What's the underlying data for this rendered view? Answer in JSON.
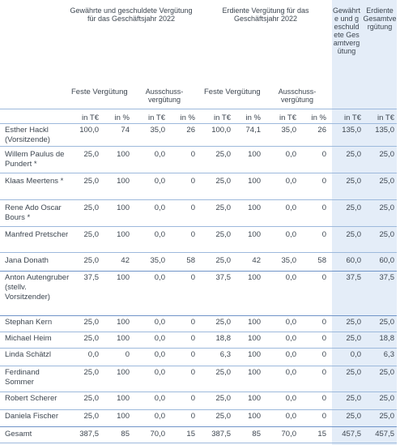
{
  "headers": {
    "group_granted": "Gewährte und geschuldete Vergütung für das Geschäftsjahr 2022",
    "group_earned": "Erdiente Vergütung für das Geschäftsjahr 2022",
    "total_granted": "Gewährte und geschuldete Gesamtvergütung",
    "total_earned": "Erdiente Gesamtvergütung",
    "fixed": "Feste Vergütung",
    "committee": "Ausschuss-vergütung",
    "unit_teur": "in T€",
    "unit_pct": "in %"
  },
  "rows": [
    {
      "name": "Esther Hackl (Vorsitzende)",
      "g_fix": "100,0",
      "g_fix_pct": "74",
      "g_com": "35,0",
      "g_com_pct": "26",
      "e_fix": "100,0",
      "e_fix_pct": "74,1",
      "e_com": "35,0",
      "e_com_pct": "26",
      "tot_g": "135,0",
      "tot_e": "135,0"
    },
    {
      "name": "Willem Paulus de Pundert *",
      "g_fix": "25,0",
      "g_fix_pct": "100",
      "g_com": "0,0",
      "g_com_pct": "0",
      "e_fix": "25,0",
      "e_fix_pct": "100",
      "e_com": "0,0",
      "e_com_pct": "0",
      "tot_g": "25,0",
      "tot_e": "25,0"
    },
    {
      "name": "Klaas Meertens *",
      "g_fix": "25,0",
      "g_fix_pct": "100",
      "g_com": "0,0",
      "g_com_pct": "0",
      "e_fix": "25,0",
      "e_fix_pct": "100",
      "e_com": "0,0",
      "e_com_pct": "0",
      "tot_g": "25,0",
      "tot_e": "25,0"
    },
    {
      "name": "Rene Ado Oscar Bours *",
      "g_fix": "25,0",
      "g_fix_pct": "100",
      "g_com": "0,0",
      "g_com_pct": "0",
      "e_fix": "25,0",
      "e_fix_pct": "100",
      "e_com": "0,0",
      "e_com_pct": "0",
      "tot_g": "25,0",
      "tot_e": "25,0"
    },
    {
      "name": "Manfred Pretscher",
      "g_fix": "25,0",
      "g_fix_pct": "100",
      "g_com": "0,0",
      "g_com_pct": "0",
      "e_fix": "25,0",
      "e_fix_pct": "100",
      "e_com": "0,0",
      "e_com_pct": "0",
      "tot_g": "25,0",
      "tot_e": "25,0"
    },
    {
      "name": "Jana Donath",
      "g_fix": "25,0",
      "g_fix_pct": "42",
      "g_com": "35,0",
      "g_com_pct": "58",
      "e_fix": "25,0",
      "e_fix_pct": "42",
      "e_com": "35,0",
      "e_com_pct": "58",
      "tot_g": "60,0",
      "tot_e": "60,0"
    },
    {
      "name": "Anton Autengruber (stellv. Vorsitzender)",
      "g_fix": "37,5",
      "g_fix_pct": "100",
      "g_com": "0,0",
      "g_com_pct": "0",
      "e_fix": "37,5",
      "e_fix_pct": "100",
      "e_com": "0,0",
      "e_com_pct": "0",
      "tot_g": "37,5",
      "tot_e": "37,5"
    },
    {
      "name": "Stephan Kern",
      "g_fix": "25,0",
      "g_fix_pct": "100",
      "g_com": "0,0",
      "g_com_pct": "0",
      "e_fix": "25,0",
      "e_fix_pct": "100",
      "e_com": "0,0",
      "e_com_pct": "0",
      "tot_g": "25,0",
      "tot_e": "25,0"
    },
    {
      "name": "Michael Heim",
      "g_fix": "25,0",
      "g_fix_pct": "100",
      "g_com": "0,0",
      "g_com_pct": "0",
      "e_fix": "18,8",
      "e_fix_pct": "100",
      "e_com": "0,0",
      "e_com_pct": "0",
      "tot_g": "25,0",
      "tot_e": "18,8"
    },
    {
      "name": "Linda Schätzl",
      "g_fix": "0,0",
      "g_fix_pct": "0",
      "g_com": "0,0",
      "g_com_pct": "0",
      "e_fix": "6,3",
      "e_fix_pct": "100",
      "e_com": "0,0",
      "e_com_pct": "0",
      "tot_g": "0,0",
      "tot_e": "6,3"
    },
    {
      "name": "Ferdinand Sommer",
      "g_fix": "25,0",
      "g_fix_pct": "100",
      "g_com": "0,0",
      "g_com_pct": "0",
      "e_fix": "25,0",
      "e_fix_pct": "100",
      "e_com": "0,0",
      "e_com_pct": "0",
      "tot_g": "25,0",
      "tot_e": "25,0"
    },
    {
      "name": "Robert Scherer",
      "g_fix": "25,0",
      "g_fix_pct": "100",
      "g_com": "0,0",
      "g_com_pct": "0",
      "e_fix": "25,0",
      "e_fix_pct": "100",
      "e_com": "0,0",
      "e_com_pct": "0",
      "tot_g": "25,0",
      "tot_e": "25,0"
    },
    {
      "name": "Daniela Fischer",
      "g_fix": "25,0",
      "g_fix_pct": "100",
      "g_com": "0,0",
      "g_com_pct": "0",
      "e_fix": "25,0",
      "e_fix_pct": "100",
      "e_com": "0,0",
      "e_com_pct": "0",
      "tot_g": "25,0",
      "tot_e": "25,0"
    },
    {
      "name": "Gesamt",
      "g_fix": "387,5",
      "g_fix_pct": "85",
      "g_com": "70,0",
      "g_com_pct": "15",
      "e_fix": "387,5",
      "e_fix_pct": "85",
      "e_com": "70,0",
      "e_com_pct": "15",
      "tot_g": "457,5",
      "tot_e": "457,5"
    }
  ]
}
